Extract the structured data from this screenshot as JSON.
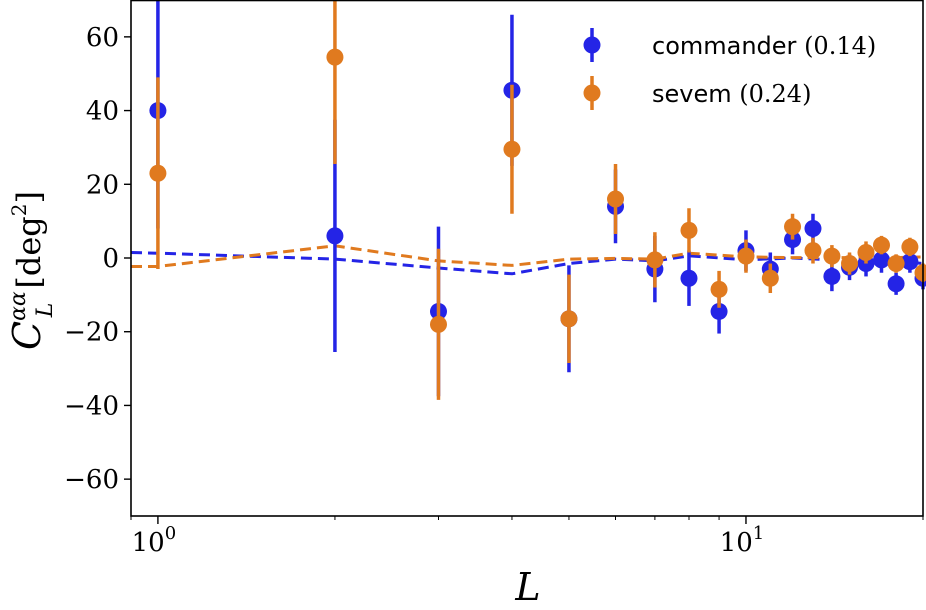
{
  "chart_data": {
    "type": "scatter",
    "title": "",
    "xlabel": "L",
    "ylabel": "C_L^{αα} [deg²]",
    "ylabel_main": "C",
    "ylabel_sup": "αα",
    "ylabel_sub": "L",
    "ylabel_unit": "[deg",
    "ylabel_unit_sup": "2",
    "ylabel_unit_close": "]",
    "xscale": "log",
    "xlim": [
      0.9,
      20
    ],
    "ylim": [
      -70,
      70
    ],
    "xticks": [
      {
        "value": 1,
        "label": "10",
        "exp": "0"
      },
      {
        "value": 10,
        "label": "10",
        "exp": "1"
      }
    ],
    "yticks": [
      {
        "value": 60,
        "label": "60"
      },
      {
        "value": 40,
        "label": "40"
      },
      {
        "value": 20,
        "label": "20"
      },
      {
        "value": 0,
        "label": "0"
      },
      {
        "value": -20,
        "label": "−20"
      },
      {
        "value": -40,
        "label": "−40"
      },
      {
        "value": -60,
        "label": "−60"
      }
    ],
    "legend_position": "top-right",
    "grid": false,
    "series": [
      {
        "name": "commander",
        "legend_value": "(0.14)",
        "color": "#2424e6",
        "points": [
          {
            "x": 1,
            "y": 40,
            "err": 32
          },
          {
            "x": 2,
            "y": 6,
            "err": 31.5
          },
          {
            "x": 3,
            "y": -14.5,
            "err": 23
          },
          {
            "x": 4,
            "y": 45.5,
            "err": 20.5
          },
          {
            "x": 5,
            "y": -16.5,
            "err": 14.5
          },
          {
            "x": 6,
            "y": 14,
            "err": 10
          },
          {
            "x": 7,
            "y": -3,
            "err": 9
          },
          {
            "x": 8,
            "y": -5.5,
            "err": 7.5
          },
          {
            "x": 9,
            "y": -14.5,
            "err": 6
          },
          {
            "x": 10,
            "y": 2,
            "err": 5.5
          },
          {
            "x": 11,
            "y": -3,
            "err": 4.5
          },
          {
            "x": 12,
            "y": 5,
            "err": 4
          },
          {
            "x": 13,
            "y": 8,
            "err": 4
          },
          {
            "x": 14,
            "y": -5,
            "err": 4
          },
          {
            "x": 15,
            "y": -2.5,
            "err": 3.5
          },
          {
            "x": 16,
            "y": -1.5,
            "err": 3.5
          },
          {
            "x": 17,
            "y": -0.5,
            "err": 3.5
          },
          {
            "x": 18,
            "y": -7,
            "err": 3
          },
          {
            "x": 19,
            "y": -1,
            "err": 3
          },
          {
            "x": 20,
            "y": -5.5,
            "err": 3
          }
        ],
        "baseline": [
          {
            "x": 0.9,
            "y": 1.5
          },
          {
            "x": 1,
            "y": 1.3
          },
          {
            "x": 2,
            "y": -0.3
          },
          {
            "x": 3,
            "y": -2.7
          },
          {
            "x": 4,
            "y": -4.3
          },
          {
            "x": 5,
            "y": -1.5
          },
          {
            "x": 6,
            "y": -0.3
          },
          {
            "x": 7,
            "y": -0.8
          },
          {
            "x": 8,
            "y": 0.6
          },
          {
            "x": 10,
            "y": -0.5
          },
          {
            "x": 12,
            "y": 0
          },
          {
            "x": 14,
            "y": -0.5
          },
          {
            "x": 16,
            "y": -0.3
          },
          {
            "x": 18,
            "y": -0.8
          },
          {
            "x": 20,
            "y": -1.5
          }
        ]
      },
      {
        "name": "sevem",
        "legend_value": "(0.24)",
        "color": "#e07a1f",
        "points": [
          {
            "x": 1,
            "y": 23,
            "err": 26
          },
          {
            "x": 2,
            "y": 54.5,
            "err": 29
          },
          {
            "x": 3,
            "y": -18,
            "err": 20.5
          },
          {
            "x": 4,
            "y": 29.5,
            "err": 17.5
          },
          {
            "x": 5,
            "y": -16.5,
            "err": 12
          },
          {
            "x": 6,
            "y": 16,
            "err": 9.5
          },
          {
            "x": 7,
            "y": -0.5,
            "err": 7.5
          },
          {
            "x": 8,
            "y": 7.5,
            "err": 6
          },
          {
            "x": 9,
            "y": -8.5,
            "err": 5
          },
          {
            "x": 10,
            "y": 0.5,
            "err": 4.5
          },
          {
            "x": 11,
            "y": -5.5,
            "err": 4
          },
          {
            "x": 12,
            "y": 8.5,
            "err": 3.5
          },
          {
            "x": 13,
            "y": 2,
            "err": 3.5
          },
          {
            "x": 14,
            "y": 0.5,
            "err": 3
          },
          {
            "x": 15,
            "y": -1.5,
            "err": 3
          },
          {
            "x": 16,
            "y": 1.5,
            "err": 3
          },
          {
            "x": 17,
            "y": 3.5,
            "err": 2.5
          },
          {
            "x": 18,
            "y": -1.5,
            "err": 2.5
          },
          {
            "x": 19,
            "y": 3,
            "err": 2.5
          },
          {
            "x": 20,
            "y": -4,
            "err": 2.5
          }
        ],
        "baseline": [
          {
            "x": 0.9,
            "y": -2.3
          },
          {
            "x": 1,
            "y": -2.3
          },
          {
            "x": 2,
            "y": 3.3
          },
          {
            "x": 3,
            "y": -0.8
          },
          {
            "x": 4,
            "y": -2
          },
          {
            "x": 5,
            "y": -0.3
          },
          {
            "x": 6,
            "y": -0.1
          },
          {
            "x": 7,
            "y": -0.3
          },
          {
            "x": 8,
            "y": 1.3
          },
          {
            "x": 10,
            "y": 0.3
          },
          {
            "x": 12,
            "y": 0.1
          },
          {
            "x": 14,
            "y": 0.1
          },
          {
            "x": 16,
            "y": 0.1
          },
          {
            "x": 18,
            "y": 0.1
          },
          {
            "x": 20,
            "y": 0.3
          }
        ]
      }
    ]
  }
}
